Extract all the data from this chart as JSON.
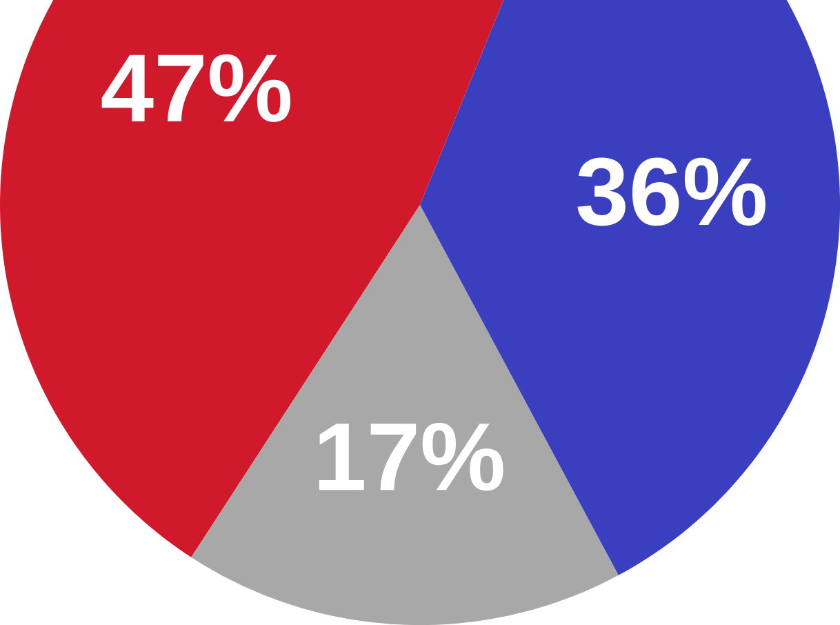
{
  "chart_data": {
    "type": "pie",
    "categories": [
      null,
      null,
      null
    ],
    "values": [
      47,
      17,
      36
    ],
    "colors": [
      "#d0192b",
      "#a8a8a8",
      "#3a3fc0"
    ],
    "value_labels": [
      "47%",
      "17%",
      "36%"
    ]
  }
}
